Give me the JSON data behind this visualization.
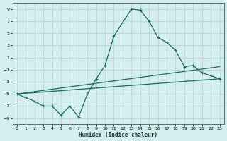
{
  "xlabel": "Humidex (Indice chaleur)",
  "background_color": "#d4eeee",
  "grid_color": "#b0d0d0",
  "line_color": "#1a6b5a",
  "x_values": [
    0,
    1,
    2,
    3,
    4,
    5,
    6,
    7,
    8,
    9,
    10,
    11,
    12,
    13,
    14,
    15,
    16,
    17,
    18,
    19,
    20,
    21,
    22,
    23
  ],
  "main_curve": [
    -5,
    -5.6,
    -6.2,
    -7.0,
    -7.0,
    -8.5,
    -7.0,
    -8.8,
    -5.0,
    -2.5,
    -0.3,
    4.5,
    6.8,
    9.0,
    8.8,
    7.0,
    4.3,
    3.5,
    2.2,
    -0.5,
    -0.3,
    -1.5,
    -2.0,
    -2.5
  ],
  "upper_line_x": [
    0,
    23
  ],
  "upper_line_y": [
    -5,
    -0.5
  ],
  "lower_line_x": [
    0,
    23
  ],
  "lower_line_y": [
    -5,
    -2.5
  ],
  "ylim": [
    -10,
    10
  ],
  "xlim": [
    -0.5,
    23.5
  ],
  "yticks": [
    -9,
    -7,
    -5,
    -3,
    -1,
    1,
    3,
    5,
    7,
    9
  ],
  "xticks": [
    0,
    1,
    2,
    3,
    4,
    5,
    6,
    7,
    8,
    9,
    10,
    11,
    12,
    13,
    14,
    15,
    16,
    17,
    18,
    19,
    20,
    21,
    22,
    23
  ],
  "lw": 0.9,
  "marker_size": 3.5
}
